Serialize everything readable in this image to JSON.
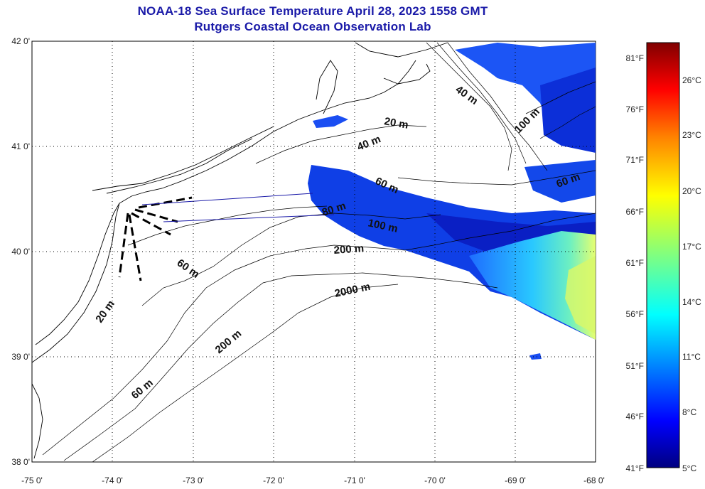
{
  "title": {
    "line1": "NOAA-18 Sea Surface Temperature April 28, 2023 1558 GMT",
    "line2": "Rutgers Coastal Ocean Observation Lab"
  },
  "map": {
    "lon_ticks": [
      "-75 0'",
      "-74 0'",
      "-73 0'",
      "-72 0'",
      "-71 0'",
      "-70 0'",
      "-69 0'",
      "-68 0'"
    ],
    "lat_ticks": [
      "42 0'",
      "41 0'",
      "40 0'",
      "39 0'",
      "38 0'"
    ],
    "lon_range": [
      -75,
      -68
    ],
    "lat_range": [
      38,
      42
    ],
    "grid": "dotted"
  },
  "isobath_labels": [
    "40 m",
    "20 m",
    "40 m",
    "100 m",
    "60 m",
    "60 m",
    "80 m",
    "100 m",
    "200 m",
    "60 m",
    "2000 m",
    "20 m",
    "200 m",
    "60 m"
  ],
  "colorbar": {
    "fahrenheit": [
      "81°F",
      "76°F",
      "71°F",
      "66°F",
      "61°F",
      "56°F",
      "51°F",
      "46°F",
      "41°F"
    ],
    "celsius": [
      "26°C",
      "23°C",
      "20°C",
      "17°C",
      "14°C",
      "11°C",
      "8°C",
      "5°C"
    ],
    "colors": [
      "#000080",
      "#0000ff",
      "#0080ff",
      "#00ffff",
      "#80ff80",
      "#ffff00",
      "#ff8000",
      "#ff0000",
      "#800000"
    ]
  }
}
